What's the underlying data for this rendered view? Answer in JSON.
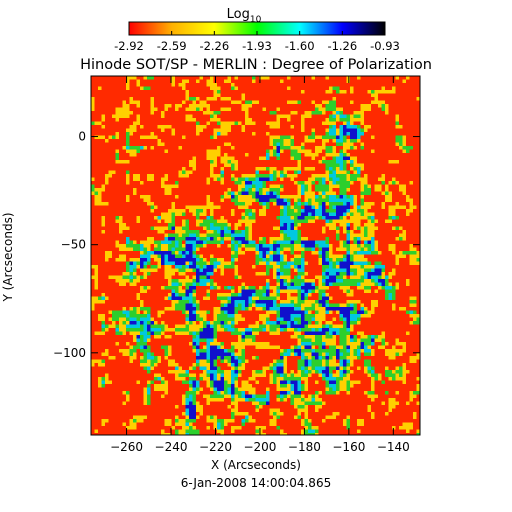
{
  "chart_data": {
    "type": "heatmap",
    "title": "Hinode SOT/SP - MERLIN : Degree of Polarization",
    "subtitle": "6-Jan-2008 14:00:04.865",
    "xlabel": "X (Arcseconds)",
    "ylabel": "Y (Arcseconds)",
    "xlim": [
      -276,
      -128
    ],
    "ylim": [
      -138,
      28
    ],
    "xticks": [
      -260,
      -240,
      -220,
      -200,
      -180,
      -160,
      -140
    ],
    "yticks": [
      0,
      -50,
      -100
    ],
    "colorbar": {
      "label_base": "Log",
      "label_sub": "10",
      "ticks": [
        "-2.92",
        "-2.59",
        "-2.26",
        "-1.93",
        "-1.60",
        "-1.26",
        "-0.93"
      ],
      "range": [
        -2.92,
        -0.93
      ],
      "colormap": [
        "#ff0000",
        "#ffb000",
        "#ffff00",
        "#00ff00",
        "#00ffff",
        "#0000ff",
        "#000000"
      ]
    },
    "field_colors": {
      "quiet": "#ff2a00",
      "weak": "#ffd000",
      "medium": "#2ccf2c",
      "strong": "#00c8e0",
      "strongest": "#1010cc"
    },
    "grid": false,
    "legend": "none"
  }
}
